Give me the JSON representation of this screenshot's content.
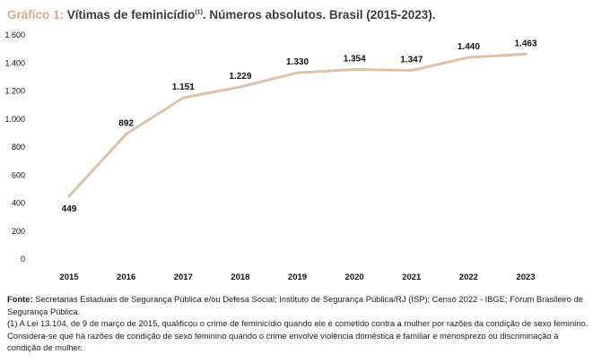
{
  "header": {
    "lead": "Gráfico 1:",
    "title": "Vítimas de feminicídio",
    "title_sup": "(1)",
    "title_rest": ". Números absolutos. Brasil (2015-2023)."
  },
  "chart_data": {
    "type": "line",
    "x": [
      "2015",
      "2016",
      "2017",
      "2018",
      "2019",
      "2020",
      "2021",
      "2022",
      "2023"
    ],
    "series": [
      {
        "values": [
          449,
          892,
          1151,
          1229,
          1330,
          1354,
          1347,
          1440,
          1463
        ],
        "color": "#e2c0a6"
      }
    ],
    "data_labels": [
      "449",
      "892",
      "1.151",
      "1.229",
      "1.330",
      "1.354",
      "1.347",
      "1.440",
      "1.463"
    ],
    "ylim": [
      0,
      1600
    ],
    "yticks": [
      0,
      200,
      400,
      600,
      800,
      1000,
      1200,
      1400,
      1600
    ],
    "ytick_labels": [
      "0",
      "200",
      "400",
      "600",
      "800",
      "1.000",
      "1.200",
      "1.400",
      "1.600"
    ],
    "grid": false,
    "legend": "none",
    "xlabel": "",
    "ylabel": ""
  },
  "footer": {
    "source_label": "Fonte:",
    "source_text": "Secretarias Estaduais de Segurança Pública e/ou Defesa Social; Instituto de Segurança Pública/RJ (ISP); Censo 2022 - IBGE; Fórum Brasileiro de Segurança Pública.",
    "note": "(1) A Lei 13.104, de 9 de março de 2015, qualificou o crime de feminicídio quando ele é cometido contra a mulher por razões da condição de sexo feminino. Considera-se que há razões de condição de sexo feminino quando o crime envolve violência doméstica e familiar e menosprezo ou discriminação à condição de mulher."
  }
}
